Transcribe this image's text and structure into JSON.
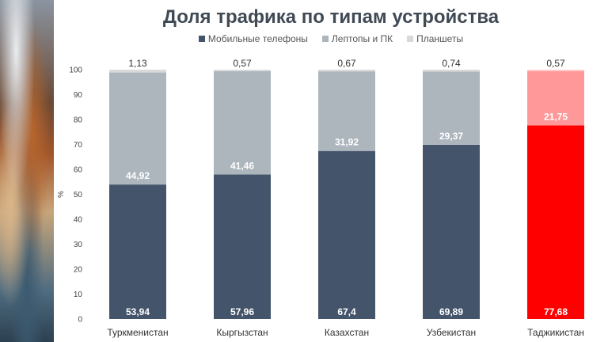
{
  "title": "Доля трафика по типам устройства",
  "legend": [
    {
      "name": "Мобильные телефоны",
      "color": "#44546a"
    },
    {
      "name": "Лептопы и ПК",
      "color": "#adb5bd"
    },
    {
      "name": "Планшеты",
      "color": "#d9d9d9"
    }
  ],
  "chart_data": {
    "type": "bar",
    "stacked": true,
    "title": "Доля трафика по типам устройства",
    "xlabel": "",
    "ylabel": "%",
    "ylim": [
      0,
      100
    ],
    "yticks": [
      0,
      10,
      20,
      30,
      40,
      50,
      60,
      70,
      80,
      90,
      100
    ],
    "grid": false,
    "legend_position": "top",
    "categories": [
      "Туркменистан",
      "Кыргызстан",
      "Казахстан",
      "Узбекистан",
      "Таджикистан"
    ],
    "series": [
      {
        "name": "Мобильные телефоны",
        "values": [
          53.94,
          57.96,
          67.4,
          69.89,
          77.68
        ],
        "labels": [
          "53,94",
          "57,96",
          "67,4",
          "69,89",
          "77,68"
        ]
      },
      {
        "name": "Лептопы и ПК",
        "values": [
          44.92,
          41.46,
          31.92,
          29.37,
          21.75
        ],
        "labels": [
          "44,92",
          "41,46",
          "31,92",
          "29,37",
          "21,75"
        ]
      },
      {
        "name": "Планшеты",
        "values": [
          1.13,
          0.57,
          0.67,
          0.74,
          0.57
        ],
        "labels": [
          "1,13",
          "0,57",
          "0,67",
          "0,74",
          "0,57"
        ]
      }
    ],
    "highlight": {
      "category": "Таджикистан",
      "colors": [
        "#ff0000",
        "#ff9999",
        "#ffc9c9"
      ]
    }
  }
}
